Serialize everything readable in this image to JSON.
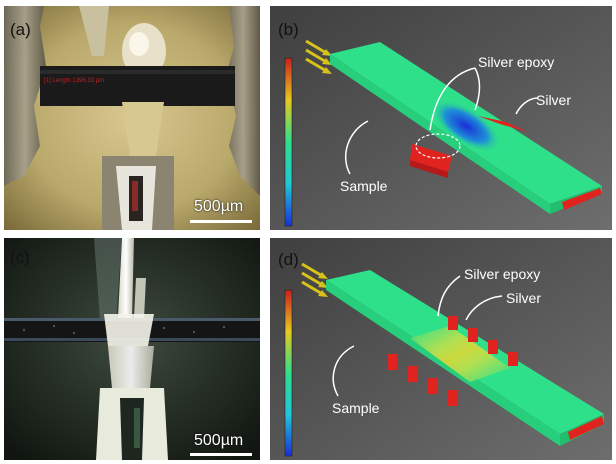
{
  "panels": {
    "a": {
      "label": "(a)",
      "scale_text": "500µm",
      "measurement_text": "[1] Length 1396.33 µm"
    },
    "b": {
      "label": "(b)",
      "annotations": {
        "silver_epoxy": "Silver epoxy",
        "silver": "Silver",
        "sample": "Sample"
      }
    },
    "c": {
      "label": "(c)",
      "scale_text": "500µm"
    },
    "d": {
      "label": "(d)",
      "annotations": {
        "silver_epoxy": "Silver epoxy",
        "silver": "Silver",
        "sample": "Sample"
      }
    }
  },
  "colors": {
    "sim_background": "#4a4a4a",
    "sample_green": "#2ee08a",
    "hot_red": "#e0231e",
    "cold_blue": "#1a3fd8",
    "arrow_yellow": "#d8c21a"
  },
  "icons": {
    "flux_arrows": "yellow-arrows-icon",
    "colorbar": "colorbar-legend"
  }
}
